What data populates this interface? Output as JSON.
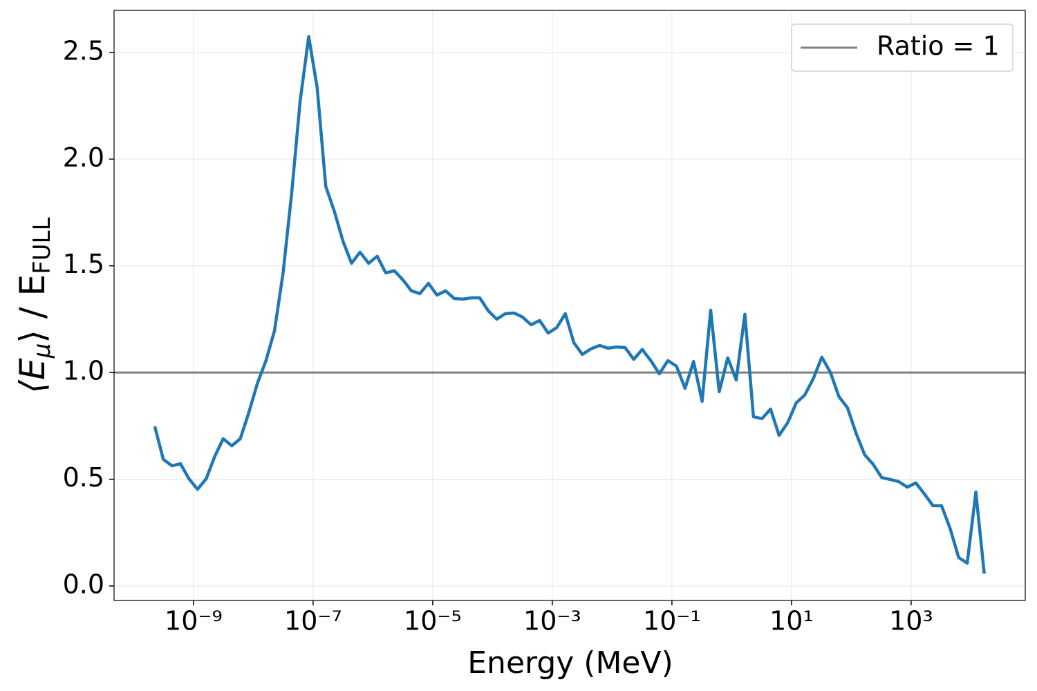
{
  "chart_data": {
    "type": "line",
    "x_label": "Energy (MeV)",
    "y_label": [
      "⟨E",
      "μ",
      "⟩ / E",
      "FULL"
    ],
    "log_x": true,
    "grid": true,
    "legend_position": "upper right",
    "xlim": [
      4.7e-11,
      81000
    ],
    "ylim": [
      -0.068,
      2.697
    ],
    "xticks": [
      {
        "value": 1e-09,
        "label": "10⁻⁹"
      },
      {
        "value": 1e-07,
        "label": "10⁻⁷"
      },
      {
        "value": 1e-05,
        "label": "10⁻⁵"
      },
      {
        "value": 0.001,
        "label": "10⁻³"
      },
      {
        "value": 0.1,
        "label": "10⁻¹"
      },
      {
        "value": 10,
        "label": "10¹"
      },
      {
        "value": 1000,
        "label": "10³"
      }
    ],
    "yticks": [
      {
        "value": 0,
        "label": "0.0"
      },
      0.5,
      {
        "value": 1,
        "label": "1.0"
      },
      1.5,
      {
        "value": 2,
        "label": "2.0"
      },
      2.5
    ],
    "hline": {
      "value": 1,
      "label": "Ratio = 1",
      "color": "#808080"
    },
    "x": [
      2.25e-10,
      3.13e-10,
      4.36e-10,
      6.05e-10,
      8.41e-10,
      1.17e-09,
      1.63e-09,
      2.26e-09,
      3.14e-09,
      4.37e-09,
      6.07e-09,
      8.43e-09,
      1.17e-08,
      1.63e-08,
      2.26e-08,
      3.15e-08,
      4.38e-08,
      6.08e-08,
      8.45e-08,
      1.17e-07,
      1.63e-07,
      2.27e-07,
      3.16e-07,
      4.39e-07,
      6.1e-07,
      8.47e-07,
      1.18e-06,
      1.64e-06,
      2.28e-06,
      3.16e-06,
      4.4e-06,
      6.11e-06,
      8.49e-06,
      1.18e-05,
      1.64e-05,
      2.28e-05,
      3.17e-05,
      4.41e-05,
      6.12e-05,
      8.51e-05,
      0.000118,
      0.000164,
      0.000229,
      0.000318,
      0.000442,
      0.000614,
      0.000853,
      0.00119,
      0.00165,
      0.00229,
      0.00318,
      0.00443,
      0.00615,
      0.00855,
      0.0119,
      0.0165,
      0.023,
      0.0319,
      0.0444,
      0.0617,
      0.0857,
      0.119,
      0.166,
      0.23,
      0.32,
      0.445,
      0.618,
      0.859,
      1.19,
      1.66,
      2.31,
      3.21,
      4.46,
      6.19,
      8.61,
      12.0,
      16.6,
      23.1,
      32.1,
      44.7,
      62.1,
      86.3,
      120,
      167,
      232,
      322,
      448,
      622,
      865,
      1200,
      1670,
      2320,
      3230,
      4490,
      6240,
      8670,
      12100,
      16700
    ],
    "series": [
      {
        "color": "#1f77b4",
        "values": [
          0.748,
          0.593,
          0.563,
          0.573,
          0.502,
          0.453,
          0.502,
          0.606,
          0.69,
          0.657,
          0.69,
          0.813,
          0.949,
          1.056,
          1.195,
          1.467,
          1.839,
          2.273,
          2.574,
          2.335,
          1.872,
          1.755,
          1.616,
          1.512,
          1.564,
          1.512,
          1.545,
          1.467,
          1.477,
          1.435,
          1.383,
          1.37,
          1.418,
          1.363,
          1.383,
          1.347,
          1.344,
          1.35,
          1.35,
          1.289,
          1.25,
          1.276,
          1.279,
          1.26,
          1.224,
          1.244,
          1.185,
          1.211,
          1.276,
          1.14,
          1.085,
          1.111,
          1.127,
          1.114,
          1.12,
          1.117,
          1.062,
          1.108,
          1.056,
          0.994,
          1.056,
          1.03,
          0.926,
          1.052,
          0.865,
          1.292,
          0.91,
          1.069,
          0.965,
          1.273,
          0.793,
          0.784,
          0.829,
          0.706,
          0.764,
          0.858,
          0.894,
          0.971,
          1.072,
          1.001,
          0.887,
          0.835,
          0.716,
          0.615,
          0.57,
          0.508,
          0.499,
          0.489,
          0.463,
          0.483,
          0.431,
          0.376,
          0.376,
          0.269,
          0.133,
          0.107,
          0.44,
          0.058
        ]
      }
    ]
  }
}
